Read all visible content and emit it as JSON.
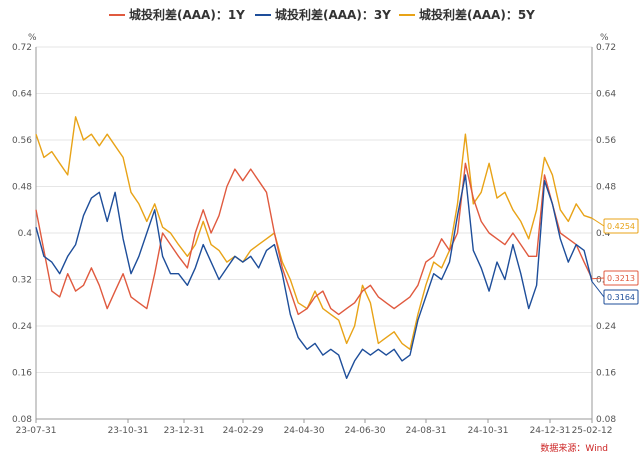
{
  "chart_data": {
    "type": "line",
    "unit_left": "%",
    "unit_right": "%",
    "source": "数据来源：Wind",
    "ylim": [
      0.08,
      0.72
    ],
    "yticks": [
      "0.72",
      "0.64",
      "0.56",
      "0.48",
      "0.4",
      "0.32",
      "0.24",
      "0.16",
      "0.08"
    ],
    "x_tick_labels": [
      "23-07-31",
      "23-10-31",
      "23-12-31",
      "24-02-29",
      "24-04-30",
      "24-06-30",
      "24-08-31",
      "24-10-31",
      "24-12-31",
      "25-02-12"
    ],
    "legend_position": "top-center",
    "grid": "horizontal",
    "series": [
      {
        "name": "城投利差(AAA)：1Y",
        "color": "#e05a3f",
        "end_label": "0.3213",
        "points": [
          [
            "2023-07-31",
            0.44
          ],
          [
            "2023-08-08",
            0.37
          ],
          [
            "2023-08-16",
            0.3
          ],
          [
            "2023-08-24",
            0.29
          ],
          [
            "2023-09-01",
            0.33
          ],
          [
            "2023-09-09",
            0.3
          ],
          [
            "2023-09-17",
            0.31
          ],
          [
            "2023-09-25",
            0.34
          ],
          [
            "2023-10-03",
            0.31
          ],
          [
            "2023-10-11",
            0.27
          ],
          [
            "2023-10-19",
            0.3
          ],
          [
            "2023-10-27",
            0.33
          ],
          [
            "2023-11-04",
            0.29
          ],
          [
            "2023-11-12",
            0.28
          ],
          [
            "2023-11-20",
            0.27
          ],
          [
            "2023-11-28",
            0.33
          ],
          [
            "2023-12-06",
            0.4
          ],
          [
            "2023-12-14",
            0.38
          ],
          [
            "2023-12-22",
            0.36
          ],
          [
            "2023-12-31",
            0.34
          ],
          [
            "2024-01-08",
            0.4
          ],
          [
            "2024-01-16",
            0.44
          ],
          [
            "2024-01-24",
            0.4
          ],
          [
            "2024-02-01",
            0.43
          ],
          [
            "2024-02-09",
            0.48
          ],
          [
            "2024-02-17",
            0.51
          ],
          [
            "2024-02-25",
            0.49
          ],
          [
            "2024-03-04",
            0.51
          ],
          [
            "2024-03-12",
            0.49
          ],
          [
            "2024-03-20",
            0.47
          ],
          [
            "2024-03-28",
            0.4
          ],
          [
            "2024-04-05",
            0.34
          ],
          [
            "2024-04-13",
            0.3
          ],
          [
            "2024-04-21",
            0.26
          ],
          [
            "2024-04-30",
            0.27
          ],
          [
            "2024-05-08",
            0.29
          ],
          [
            "2024-05-16",
            0.3
          ],
          [
            "2024-05-24",
            0.27
          ],
          [
            "2024-06-01",
            0.26
          ],
          [
            "2024-06-09",
            0.27
          ],
          [
            "2024-06-17",
            0.28
          ],
          [
            "2024-06-25",
            0.3
          ],
          [
            "2024-07-03",
            0.31
          ],
          [
            "2024-07-11",
            0.29
          ],
          [
            "2024-07-19",
            0.28
          ],
          [
            "2024-07-27",
            0.27
          ],
          [
            "2024-08-04",
            0.28
          ],
          [
            "2024-08-12",
            0.29
          ],
          [
            "2024-08-20",
            0.31
          ],
          [
            "2024-08-28",
            0.35
          ],
          [
            "2024-09-05",
            0.36
          ],
          [
            "2024-09-13",
            0.39
          ],
          [
            "2024-09-21",
            0.37
          ],
          [
            "2024-09-29",
            0.4
          ],
          [
            "2024-10-07",
            0.52
          ],
          [
            "2024-10-15",
            0.46
          ],
          [
            "2024-10-23",
            0.42
          ],
          [
            "2024-10-31",
            0.4
          ],
          [
            "2024-11-08",
            0.39
          ],
          [
            "2024-11-16",
            0.38
          ],
          [
            "2024-11-24",
            0.4
          ],
          [
            "2024-12-02",
            0.38
          ],
          [
            "2024-12-10",
            0.36
          ],
          [
            "2024-12-18",
            0.36
          ],
          [
            "2024-12-26",
            0.5
          ],
          [
            "2025-01-03",
            0.45
          ],
          [
            "2025-01-11",
            0.4
          ],
          [
            "2025-01-19",
            0.39
          ],
          [
            "2025-01-27",
            0.38
          ],
          [
            "2025-02-04",
            0.35
          ],
          [
            "2025-02-12",
            0.3213
          ]
        ]
      },
      {
        "name": "城投利差(AAA)：3Y",
        "color": "#1e4e9a",
        "end_label": "0.3164",
        "points": [
          [
            "2023-07-31",
            0.41
          ],
          [
            "2023-08-08",
            0.36
          ],
          [
            "2023-08-16",
            0.35
          ],
          [
            "2023-08-24",
            0.33
          ],
          [
            "2023-09-01",
            0.36
          ],
          [
            "2023-09-09",
            0.38
          ],
          [
            "2023-09-17",
            0.43
          ],
          [
            "2023-09-25",
            0.46
          ],
          [
            "2023-10-03",
            0.47
          ],
          [
            "2023-10-11",
            0.42
          ],
          [
            "2023-10-19",
            0.47
          ],
          [
            "2023-10-27",
            0.39
          ],
          [
            "2023-11-04",
            0.33
          ],
          [
            "2023-11-12",
            0.36
          ],
          [
            "2023-11-20",
            0.4
          ],
          [
            "2023-11-28",
            0.44
          ],
          [
            "2023-12-06",
            0.36
          ],
          [
            "2023-12-14",
            0.33
          ],
          [
            "2023-12-22",
            0.33
          ],
          [
            "2023-12-31",
            0.31
          ],
          [
            "2024-01-08",
            0.34
          ],
          [
            "2024-01-16",
            0.38
          ],
          [
            "2024-01-24",
            0.35
          ],
          [
            "2024-02-01",
            0.32
          ],
          [
            "2024-02-09",
            0.34
          ],
          [
            "2024-02-17",
            0.36
          ],
          [
            "2024-02-25",
            0.35
          ],
          [
            "2024-03-04",
            0.36
          ],
          [
            "2024-03-12",
            0.34
          ],
          [
            "2024-03-20",
            0.37
          ],
          [
            "2024-03-28",
            0.38
          ],
          [
            "2024-04-05",
            0.33
          ],
          [
            "2024-04-13",
            0.26
          ],
          [
            "2024-04-21",
            0.22
          ],
          [
            "2024-04-30",
            0.2
          ],
          [
            "2024-05-08",
            0.21
          ],
          [
            "2024-05-16",
            0.19
          ],
          [
            "2024-05-24",
            0.2
          ],
          [
            "2024-06-01",
            0.19
          ],
          [
            "2024-06-09",
            0.15
          ],
          [
            "2024-06-17",
            0.18
          ],
          [
            "2024-06-25",
            0.2
          ],
          [
            "2024-07-03",
            0.19
          ],
          [
            "2024-07-11",
            0.2
          ],
          [
            "2024-07-19",
            0.19
          ],
          [
            "2024-07-27",
            0.2
          ],
          [
            "2024-08-04",
            0.18
          ],
          [
            "2024-08-12",
            0.19
          ],
          [
            "2024-08-20",
            0.25
          ],
          [
            "2024-08-28",
            0.29
          ],
          [
            "2024-09-05",
            0.33
          ],
          [
            "2024-09-13",
            0.32
          ],
          [
            "2024-09-21",
            0.35
          ],
          [
            "2024-09-29",
            0.43
          ],
          [
            "2024-10-07",
            0.5
          ],
          [
            "2024-10-15",
            0.37
          ],
          [
            "2024-10-23",
            0.34
          ],
          [
            "2024-10-31",
            0.3
          ],
          [
            "2024-11-08",
            0.35
          ],
          [
            "2024-11-16",
            0.32
          ],
          [
            "2024-11-24",
            0.38
          ],
          [
            "2024-12-02",
            0.33
          ],
          [
            "2024-12-10",
            0.27
          ],
          [
            "2024-12-18",
            0.31
          ],
          [
            "2024-12-26",
            0.49
          ],
          [
            "2025-01-03",
            0.45
          ],
          [
            "2025-01-11",
            0.39
          ],
          [
            "2025-01-19",
            0.35
          ],
          [
            "2025-01-27",
            0.38
          ],
          [
            "2025-02-04",
            0.37
          ],
          [
            "2025-02-12",
            0.3164
          ]
        ]
      },
      {
        "name": "城投利差(AAA)：5Y",
        "color": "#e8a317",
        "end_label": "0.4254",
        "points": [
          [
            "2023-07-31",
            0.57
          ],
          [
            "2023-08-08",
            0.53
          ],
          [
            "2023-08-16",
            0.54
          ],
          [
            "2023-08-24",
            0.52
          ],
          [
            "2023-09-01",
            0.5
          ],
          [
            "2023-09-09",
            0.6
          ],
          [
            "2023-09-17",
            0.56
          ],
          [
            "2023-09-25",
            0.57
          ],
          [
            "2023-10-03",
            0.55
          ],
          [
            "2023-10-11",
            0.57
          ],
          [
            "2023-10-19",
            0.55
          ],
          [
            "2023-10-27",
            0.53
          ],
          [
            "2023-11-04",
            0.47
          ],
          [
            "2023-11-12",
            0.45
          ],
          [
            "2023-11-20",
            0.42
          ],
          [
            "2023-11-28",
            0.45
          ],
          [
            "2023-12-06",
            0.41
          ],
          [
            "2023-12-14",
            0.4
          ],
          [
            "2023-12-22",
            0.38
          ],
          [
            "2023-12-31",
            0.36
          ],
          [
            "2024-01-08",
            0.38
          ],
          [
            "2024-01-16",
            0.42
          ],
          [
            "2024-01-24",
            0.38
          ],
          [
            "2024-02-01",
            0.37
          ],
          [
            "2024-02-09",
            0.35
          ],
          [
            "2024-02-17",
            0.36
          ],
          [
            "2024-02-25",
            0.35
          ],
          [
            "2024-03-04",
            0.37
          ],
          [
            "2024-03-12",
            0.38
          ],
          [
            "2024-03-20",
            0.39
          ],
          [
            "2024-03-28",
            0.4
          ],
          [
            "2024-04-05",
            0.35
          ],
          [
            "2024-04-13",
            0.32
          ],
          [
            "2024-04-21",
            0.28
          ],
          [
            "2024-04-30",
            0.27
          ],
          [
            "2024-05-08",
            0.3
          ],
          [
            "2024-05-16",
            0.27
          ],
          [
            "2024-05-24",
            0.26
          ],
          [
            "2024-06-01",
            0.25
          ],
          [
            "2024-06-09",
            0.21
          ],
          [
            "2024-06-17",
            0.24
          ],
          [
            "2024-06-25",
            0.31
          ],
          [
            "2024-07-03",
            0.28
          ],
          [
            "2024-07-11",
            0.21
          ],
          [
            "2024-07-19",
            0.22
          ],
          [
            "2024-07-27",
            0.23
          ],
          [
            "2024-08-04",
            0.21
          ],
          [
            "2024-08-12",
            0.2
          ],
          [
            "2024-08-20",
            0.26
          ],
          [
            "2024-08-28",
            0.31
          ],
          [
            "2024-09-05",
            0.35
          ],
          [
            "2024-09-13",
            0.34
          ],
          [
            "2024-09-21",
            0.37
          ],
          [
            "2024-09-29",
            0.45
          ],
          [
            "2024-10-07",
            0.57
          ],
          [
            "2024-10-15",
            0.45
          ],
          [
            "2024-10-23",
            0.47
          ],
          [
            "2024-10-31",
            0.52
          ],
          [
            "2024-11-08",
            0.46
          ],
          [
            "2024-11-16",
            0.47
          ],
          [
            "2024-11-24",
            0.44
          ],
          [
            "2024-12-02",
            0.42
          ],
          [
            "2024-12-10",
            0.39
          ],
          [
            "2024-12-18",
            0.44
          ],
          [
            "2024-12-26",
            0.53
          ],
          [
            "2025-01-03",
            0.5
          ],
          [
            "2025-01-11",
            0.44
          ],
          [
            "2025-01-19",
            0.42
          ],
          [
            "2025-01-27",
            0.45
          ],
          [
            "2025-02-04",
            0.43
          ],
          [
            "2025-02-12",
            0.4254
          ]
        ]
      }
    ]
  }
}
